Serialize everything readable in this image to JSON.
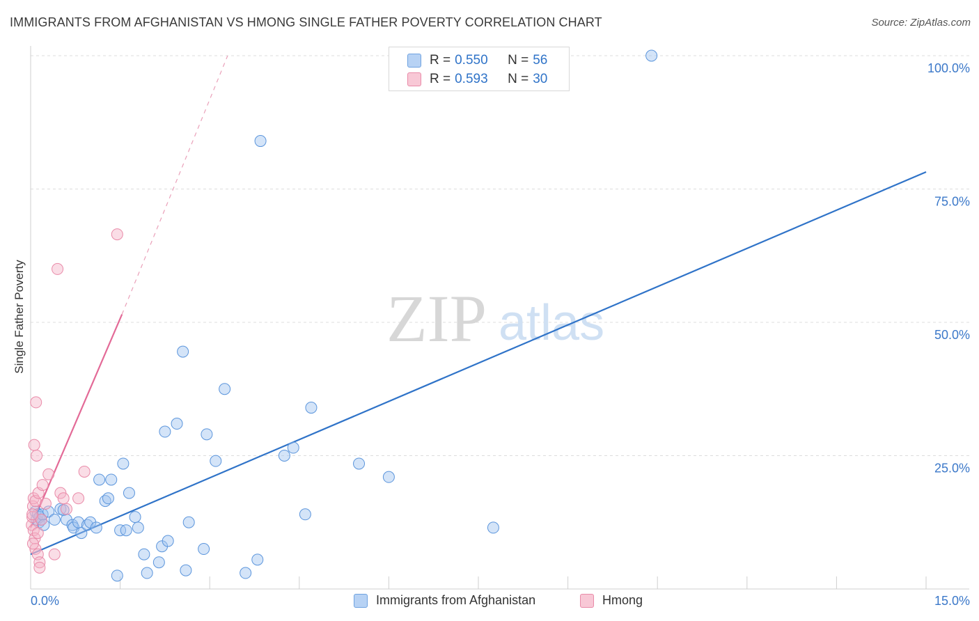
{
  "title": "IMMIGRANTS FROM AFGHANISTAN VS HMONG SINGLE FATHER POVERTY CORRELATION CHART",
  "source": "Source: ZipAtlas.com",
  "watermark": {
    "zip": "ZIP",
    "atlas": "atlas"
  },
  "colors": {
    "blue": "#4a8ad8",
    "blue_line": "#2f73c8",
    "pink": "#e98aa8",
    "pink_line": "#e36a97",
    "axis_text": "#3b78c9"
  },
  "legend_top": {
    "rows": [
      {
        "r_label": "R = ",
        "r_value": "0.550",
        "n_label": "N = ",
        "n_value": "56"
      },
      {
        "r_label": "R = ",
        "r_value": "0.593",
        "n_label": "N = ",
        "n_value": "30"
      }
    ]
  },
  "chart_data": {
    "type": "scatter",
    "title": "IMMIGRANTS FROM AFGHANISTAN VS HMONG SINGLE FATHER POVERTY CORRELATION CHART",
    "xlabel": "",
    "ylabel": "Single Father Poverty",
    "xlim": [
      0,
      15
    ],
    "ylim": [
      0,
      100
    ],
    "x_tick_labels": [
      "0.0%",
      "15.0%"
    ],
    "y_ticks": [
      25,
      50,
      75,
      100
    ],
    "y_tick_labels": [
      "25.0%",
      "50.0%",
      "75.0%",
      "100.0%"
    ],
    "grid": true,
    "legend_position": "top-center",
    "series": [
      {
        "name": "Immigrants from Afghanistan",
        "color": "#4a8ad8",
        "R": 0.55,
        "N": 56,
        "trend": {
          "x": [
            0,
            15
          ],
          "y": [
            6.5,
            78.2
          ],
          "style": "solid"
        },
        "points": [
          [
            0.08,
            14.5
          ],
          [
            0.1,
            13
          ],
          [
            0.12,
            14
          ],
          [
            0.14,
            12.5
          ],
          [
            0.15,
            13.5
          ],
          [
            0.18,
            13
          ],
          [
            0.2,
            14
          ],
          [
            0.22,
            12
          ],
          [
            0.3,
            14.5
          ],
          [
            0.4,
            13
          ],
          [
            0.5,
            15
          ],
          [
            0.55,
            14.8
          ],
          [
            0.6,
            13
          ],
          [
            0.7,
            12
          ],
          [
            0.72,
            11.5
          ],
          [
            0.8,
            12.5
          ],
          [
            0.85,
            10.5
          ],
          [
            0.95,
            12
          ],
          [
            1.0,
            12.5
          ],
          [
            1.1,
            11.5
          ],
          [
            1.15,
            20.5
          ],
          [
            1.25,
            16.5
          ],
          [
            1.3,
            17
          ],
          [
            1.35,
            20.5
          ],
          [
            1.45,
            2.5
          ],
          [
            1.5,
            11
          ],
          [
            1.55,
            23.5
          ],
          [
            1.6,
            11
          ],
          [
            1.65,
            18
          ],
          [
            1.75,
            13.5
          ],
          [
            1.8,
            11.5
          ],
          [
            1.9,
            6.5
          ],
          [
            1.95,
            3
          ],
          [
            2.15,
            5
          ],
          [
            2.2,
            8
          ],
          [
            2.25,
            29.5
          ],
          [
            2.3,
            9
          ],
          [
            2.45,
            31
          ],
          [
            2.55,
            44.5
          ],
          [
            2.6,
            3.5
          ],
          [
            2.65,
            12.5
          ],
          [
            2.9,
            7.5
          ],
          [
            2.95,
            29
          ],
          [
            3.1,
            24
          ],
          [
            3.25,
            37.5
          ],
          [
            3.6,
            3
          ],
          [
            3.8,
            5.5
          ],
          [
            3.85,
            84
          ],
          [
            4.25,
            25
          ],
          [
            4.4,
            26.5
          ],
          [
            4.6,
            14
          ],
          [
            4.7,
            34
          ],
          [
            5.5,
            23.5
          ],
          [
            6.0,
            21
          ],
          [
            7.75,
            11.5
          ],
          [
            10.4,
            100
          ]
        ]
      },
      {
        "name": "Hmong",
        "color": "#e98aa8",
        "R": 0.593,
        "N": 30,
        "trend": {
          "x": [
            0,
            1.53
          ],
          "y": [
            11.5,
            51.5
          ],
          "style": "solid",
          "extension": {
            "x": [
              1.53,
              3.3
            ],
            "y": [
              51.5,
              100
            ],
            "style": "dashed"
          }
        },
        "points": [
          [
            0.02,
            12
          ],
          [
            0.03,
            13.5
          ],
          [
            0.04,
            15.5
          ],
          [
            0.05,
            17
          ],
          [
            0.05,
            11
          ],
          [
            0.06,
            27
          ],
          [
            0.07,
            9.5
          ],
          [
            0.08,
            16.5
          ],
          [
            0.08,
            7.5
          ],
          [
            0.09,
            35
          ],
          [
            0.1,
            25
          ],
          [
            0.12,
            10.5
          ],
          [
            0.12,
            6.5
          ],
          [
            0.13,
            18
          ],
          [
            0.15,
            5
          ],
          [
            0.15,
            4
          ],
          [
            0.18,
            13
          ],
          [
            0.2,
            19.5
          ],
          [
            0.25,
            16
          ],
          [
            0.3,
            21.5
          ],
          [
            0.4,
            6.5
          ],
          [
            0.45,
            60
          ],
          [
            0.5,
            18
          ],
          [
            0.55,
            17
          ],
          [
            0.6,
            15
          ],
          [
            0.8,
            17
          ],
          [
            0.9,
            22
          ],
          [
            1.45,
            66.5
          ],
          [
            0.03,
            14
          ],
          [
            0.04,
            8.5
          ]
        ]
      }
    ]
  },
  "legend_bottom": [
    "Immigrants from Afghanistan",
    "Hmong"
  ]
}
